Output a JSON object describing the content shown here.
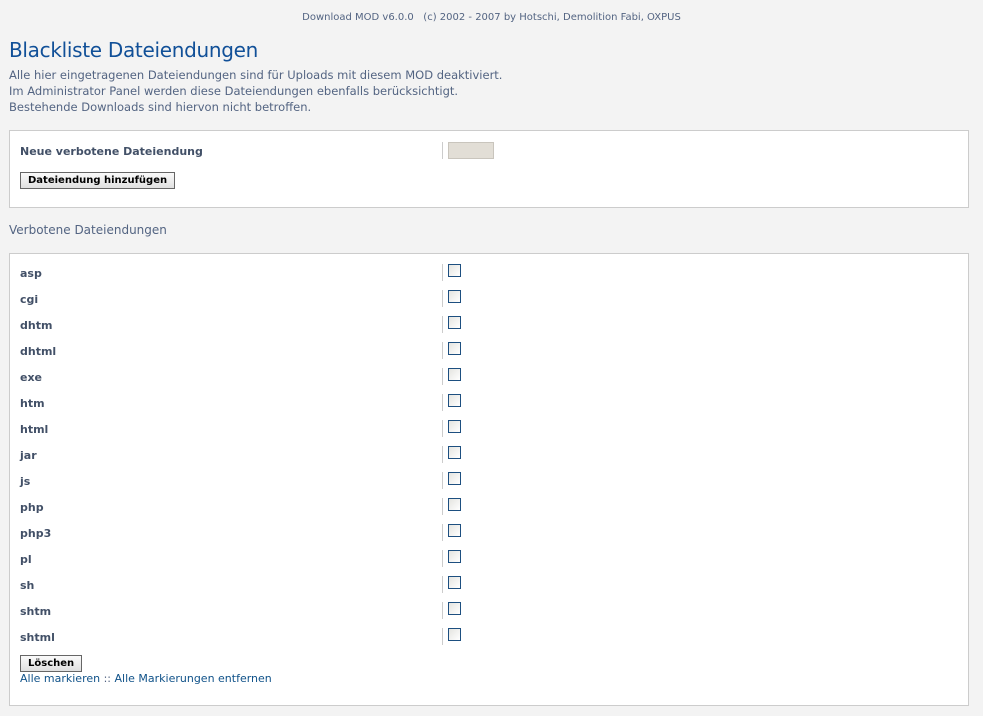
{
  "copyright": "Download MOD v6.0.0   (c) 2002 - 2007 by Hotschi, Demolition Fabi, OXPUS",
  "title": "Blackliste Dateiendungen",
  "intro": [
    "Alle hier eingetragenen Dateiendungen sind für Uploads mit diesem MOD deaktiviert.",
    "Im Administrator Panel werden diese Dateiendungen ebenfalls berücksichtigt.",
    "Bestehende Downloads sind hiervon nicht betroffen."
  ],
  "add_form": {
    "label": "Neue verbotene Dateiendung",
    "input_value": "",
    "button": "Dateiendung hinzufügen"
  },
  "list": {
    "heading": "Verbotene Dateiendungen",
    "items": [
      {
        "ext": "asp",
        "checked": false
      },
      {
        "ext": "cgi",
        "checked": false
      },
      {
        "ext": "dhtm",
        "checked": false
      },
      {
        "ext": "dhtml",
        "checked": false
      },
      {
        "ext": "exe",
        "checked": false
      },
      {
        "ext": "htm",
        "checked": false
      },
      {
        "ext": "html",
        "checked": false
      },
      {
        "ext": "jar",
        "checked": false
      },
      {
        "ext": "js",
        "checked": false
      },
      {
        "ext": "php",
        "checked": false
      },
      {
        "ext": "php3",
        "checked": false
      },
      {
        "ext": "pl",
        "checked": false
      },
      {
        "ext": "sh",
        "checked": false
      },
      {
        "ext": "shtm",
        "checked": false
      },
      {
        "ext": "shtml",
        "checked": false
      }
    ],
    "delete_button": "Löschen",
    "mark_all": "Alle markieren",
    "link_separator": " :: ",
    "unmark_all": "Alle Markierungen entfernen"
  },
  "colors": {
    "title": "#115098",
    "link": "#105289",
    "text": "#425067",
    "background": "#f3f3f3"
  }
}
